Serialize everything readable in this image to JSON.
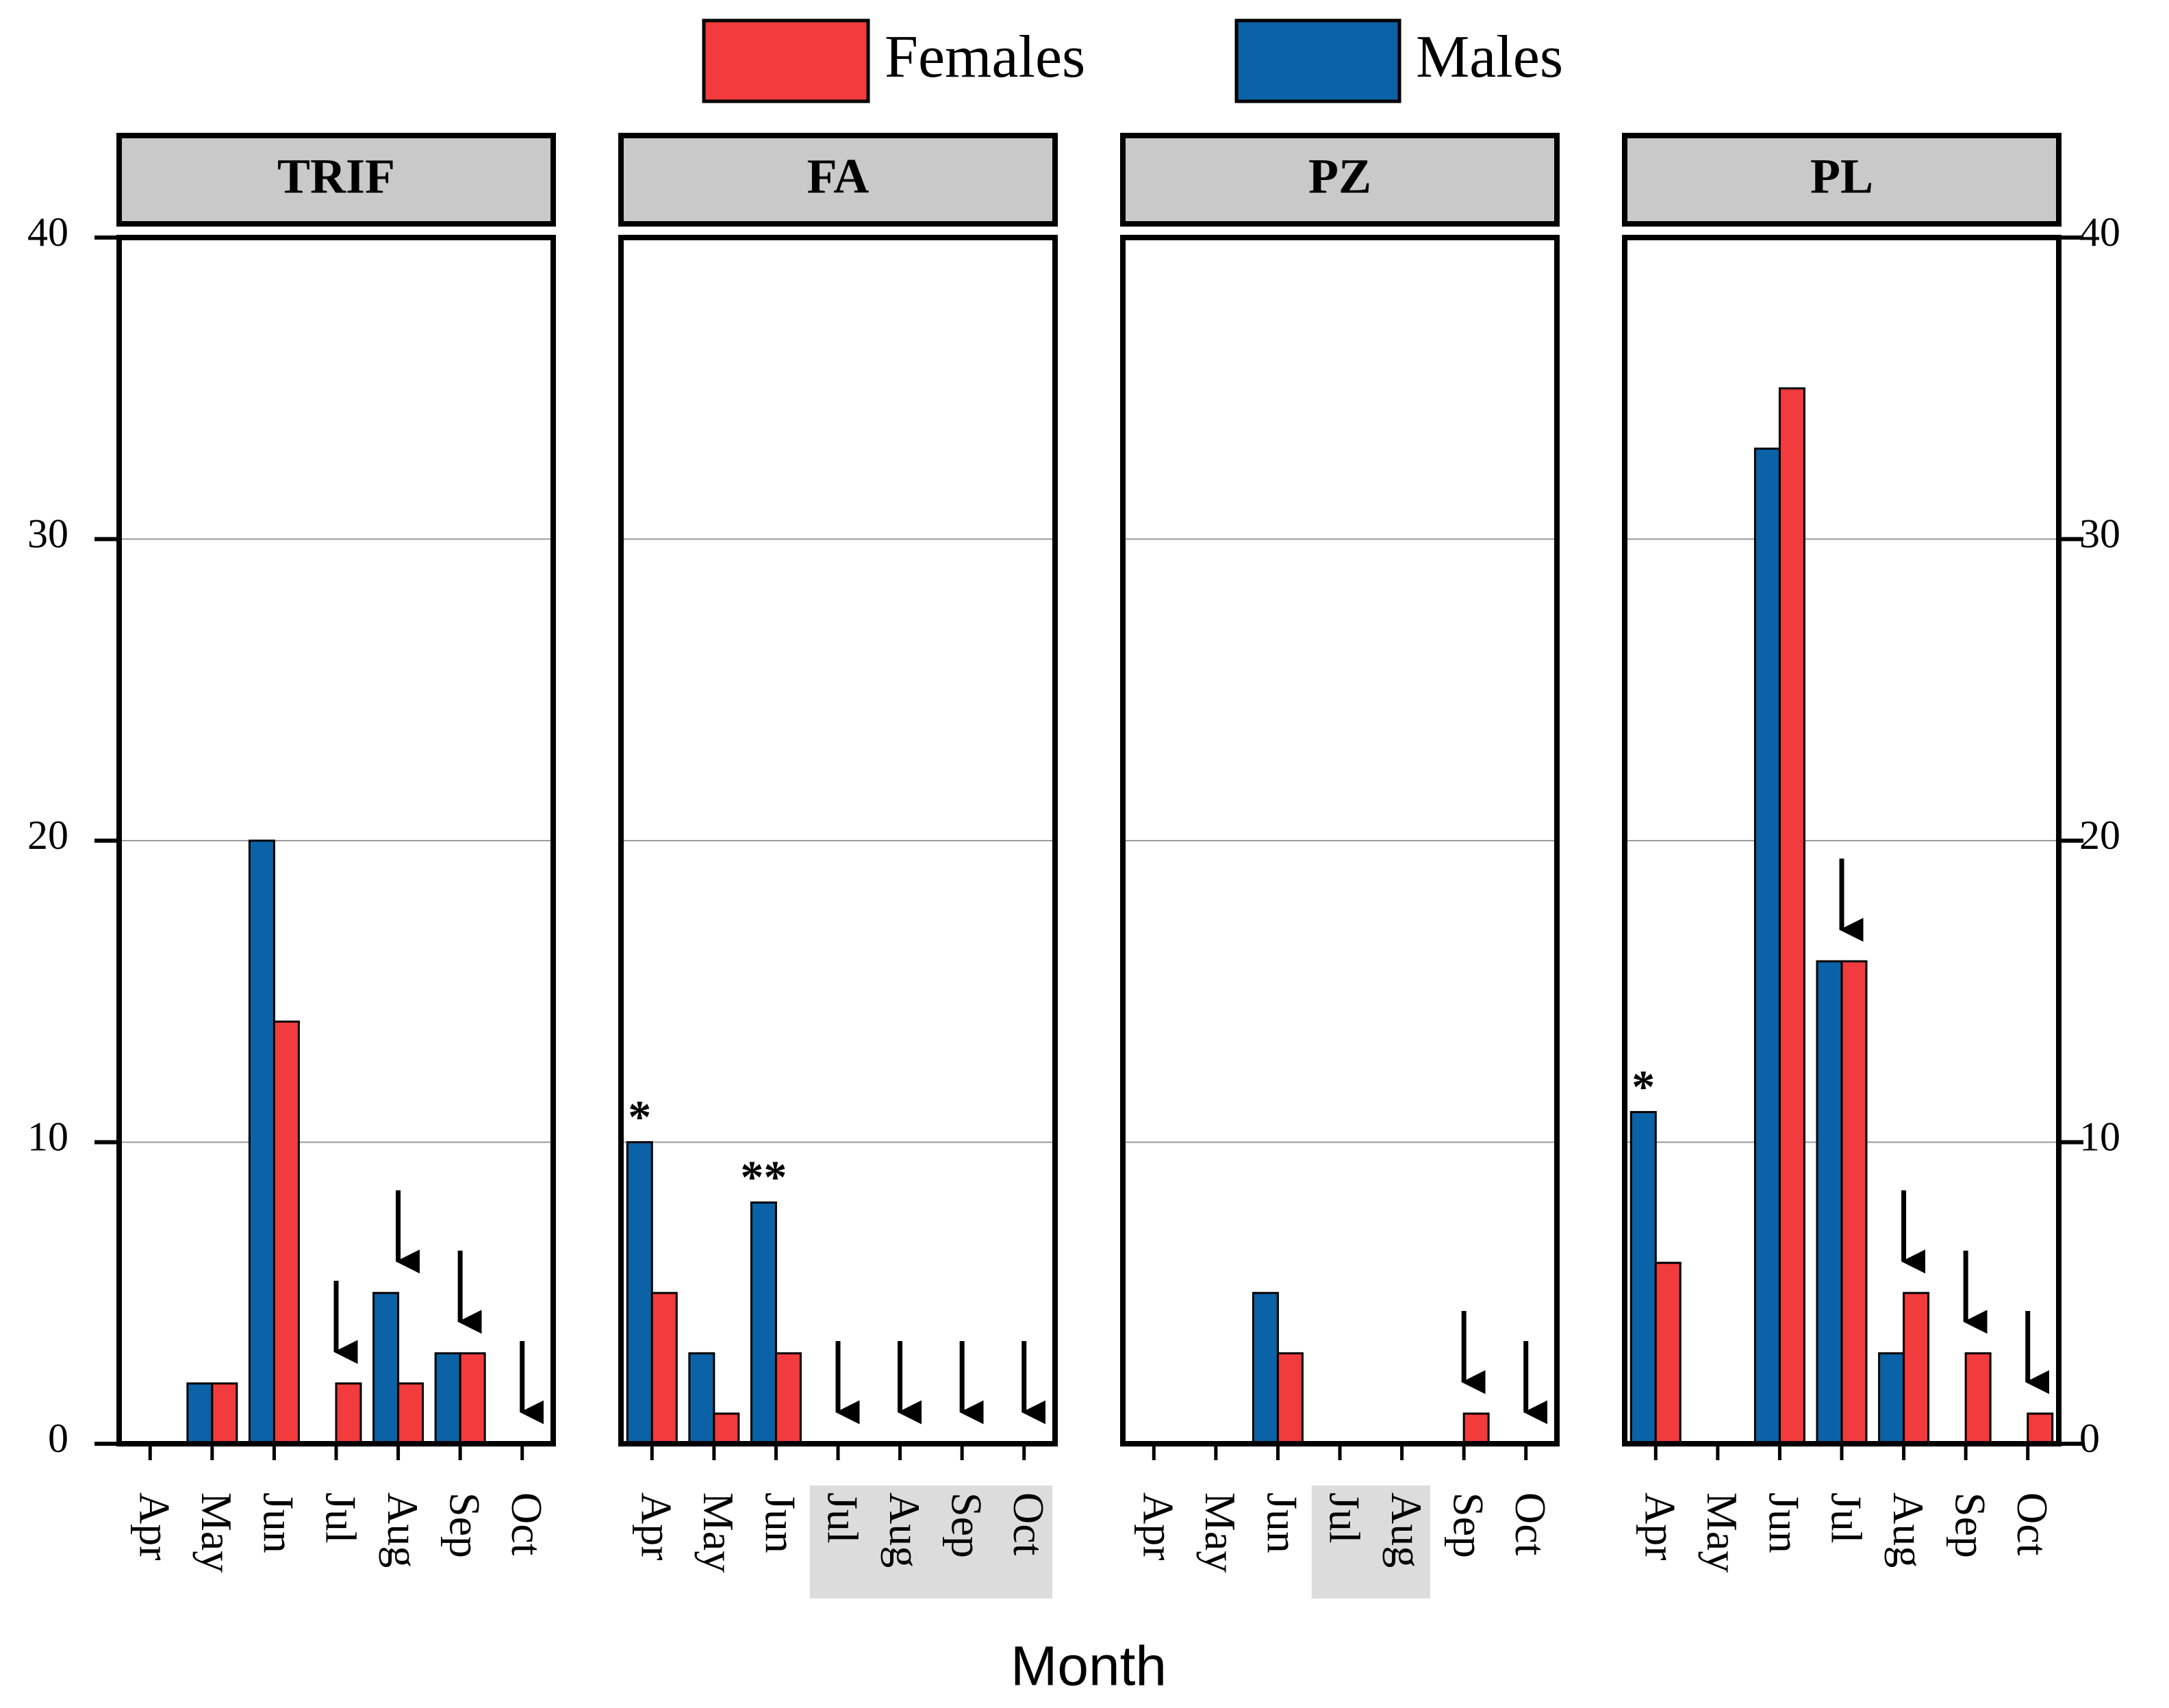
{
  "chart_data": [
    {
      "type": "bar",
      "title": "TRIF",
      "x_label": "Month",
      "y_axis": "left",
      "categories": [
        "Apr",
        "May",
        "Jun",
        "Jul",
        "Aug",
        "Sep",
        "Oct"
      ],
      "series": [
        {
          "name": "Females",
          "color": "#f23b3c",
          "values": [
            0,
            2,
            14,
            2,
            2,
            3,
            0
          ]
        },
        {
          "name": "Males",
          "color": "#0b62a6",
          "values": [
            0,
            2,
            20,
            0,
            5,
            3,
            0
          ]
        }
      ],
      "ylim": [
        0,
        40
      ],
      "yticks": [
        0,
        10,
        20,
        30,
        40
      ],
      "grid": true,
      "arrows": [
        "Jul",
        "Aug",
        "Sep",
        "Oct"
      ],
      "shaded": [],
      "annotations": []
    },
    {
      "type": "bar",
      "title": "FA",
      "y_axis": "none",
      "categories": [
        "Apr",
        "May",
        "Jun",
        "Jul",
        "Aug",
        "Sep",
        "Oct"
      ],
      "series": [
        {
          "name": "Females",
          "color": "#f23b3c",
          "values": [
            5,
            1,
            3,
            0,
            0,
            0,
            0
          ]
        },
        {
          "name": "Males",
          "color": "#0b62a6",
          "values": [
            10,
            3,
            8,
            0,
            0,
            0,
            0
          ]
        }
      ],
      "ylim": [
        0,
        40
      ],
      "yticks": [
        0,
        10,
        20,
        30,
        40
      ],
      "grid": true,
      "arrows": [
        "Jul",
        "Aug",
        "Sep",
        "Oct"
      ],
      "shaded": [
        "Jul",
        "Oct"
      ],
      "annotations": [
        {
          "text": "*",
          "category": "Apr"
        },
        {
          "text": "**",
          "category": "Jun"
        }
      ]
    },
    {
      "type": "bar",
      "title": "PZ",
      "y_axis": "none",
      "categories": [
        "Apr",
        "May",
        "Jun",
        "Jul",
        "Aug",
        "Sep",
        "Oct"
      ],
      "series": [
        {
          "name": "Females",
          "color": "#f23b3c",
          "values": [
            0,
            0,
            3,
            0,
            0,
            1,
            0
          ]
        },
        {
          "name": "Males",
          "color": "#0b62a6",
          "values": [
            0,
            0,
            5,
            0,
            0,
            0,
            0
          ]
        }
      ],
      "ylim": [
        0,
        40
      ],
      "yticks": [
        0,
        10,
        20,
        30,
        40
      ],
      "grid": true,
      "arrows": [
        "Sep",
        "Oct"
      ],
      "shaded": [
        "Jul",
        "Aug"
      ],
      "annotations": []
    },
    {
      "type": "bar",
      "title": "PL",
      "y_axis": "right",
      "categories": [
        "Apr",
        "May",
        "Jun",
        "Jul",
        "Aug",
        "Sep",
        "Oct"
      ],
      "series": [
        {
          "name": "Females",
          "color": "#f23b3c",
          "values": [
            6,
            0,
            35,
            16,
            5,
            3,
            1
          ]
        },
        {
          "name": "Males",
          "color": "#0b62a6",
          "values": [
            11,
            0,
            33,
            16,
            3,
            0,
            0
          ]
        }
      ],
      "ylim": [
        0,
        40
      ],
      "yticks": [
        0,
        10,
        20,
        30,
        40
      ],
      "grid": true,
      "arrows": [
        "Jul",
        "Aug",
        "Sep",
        "Oct"
      ],
      "shaded": [],
      "annotations": [
        {
          "text": "*",
          "category": "Apr"
        }
      ]
    }
  ]
}
